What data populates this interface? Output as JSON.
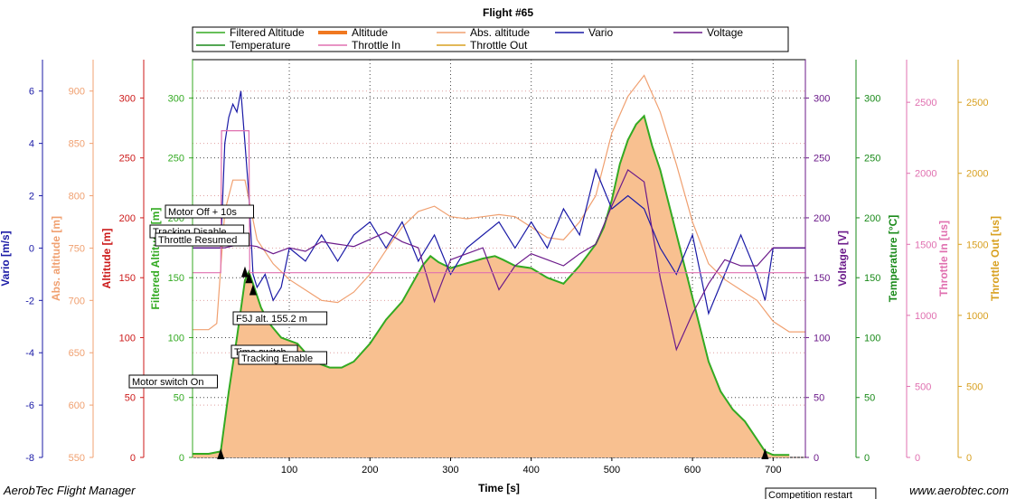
{
  "chart_data": {
    "type": "line",
    "title": "Flight #65",
    "xlabel": "Time [s]",
    "xlim": [
      -20,
      740
    ],
    "x_ticks": [
      100,
      200,
      300,
      400,
      500,
      600,
      700
    ],
    "grid": true,
    "legend_position": "top",
    "legend": [
      {
        "name": "Filtered Altitude",
        "color": "#33aa22"
      },
      {
        "name": "Altitude",
        "color": "#f07820"
      },
      {
        "name": "Abs. altitude",
        "color": "#f0a070"
      },
      {
        "name": "Vario",
        "color": "#1a1aa6"
      },
      {
        "name": "Voltage",
        "color": "#6b1a8a"
      },
      {
        "name": "Temperature",
        "color": "#1a8a1a"
      },
      {
        "name": "Throttle In",
        "color": "#e070b0"
      },
      {
        "name": "Throttle Out",
        "color": "#d8a020"
      }
    ],
    "axes": [
      {
        "label": "Vario [m/s]",
        "color": "#1a1aa6",
        "side": "left",
        "range": [
          -8,
          7.2
        ],
        "ticks": [
          -8,
          -6,
          -4,
          -2,
          0,
          2,
          4,
          6
        ]
      },
      {
        "label": "Abs. altitude [m]",
        "color": "#f0a070",
        "side": "left",
        "range": [
          550,
          930
        ],
        "ticks": [
          550,
          600,
          650,
          700,
          750,
          800,
          850,
          900
        ]
      },
      {
        "label": "Altitude [m]",
        "color": "#cc1a1a",
        "side": "left",
        "range": [
          0,
          332
        ],
        "ticks": [
          0,
          50,
          100,
          150,
          200,
          250,
          300
        ]
      },
      {
        "label": "Filtered Altitude [m]",
        "color": "#33aa22",
        "side": "left",
        "range": [
          0,
          332
        ],
        "ticks": [
          0,
          50,
          100,
          150,
          200,
          250,
          300
        ]
      },
      {
        "label": "Voltage [V]",
        "color": "#6b1a8a",
        "side": "right",
        "range": [
          0,
          332
        ],
        "ticks": [
          0,
          50,
          100,
          150,
          200,
          250,
          300
        ]
      },
      {
        "label": "Temperature [°C]",
        "color": "#1a8a1a",
        "side": "right",
        "range": [
          0,
          332
        ],
        "ticks": [
          0,
          50,
          100,
          150,
          200,
          250,
          300
        ]
      },
      {
        "label": "Throttle In [us]",
        "color": "#e070b0",
        "side": "right",
        "range": [
          0,
          2800
        ],
        "ticks": [
          0,
          500,
          1000,
          1500,
          2000,
          2500
        ]
      },
      {
        "label": "Throttle Out [us]",
        "color": "#d8a020",
        "side": "right",
        "range": [
          0,
          2800
        ],
        "ticks": [
          0,
          500,
          1000,
          1500,
          2000,
          2500
        ]
      }
    ],
    "series": [
      {
        "name": "Filtered Altitude",
        "axis": 3,
        "x": [
          -20,
          0,
          15,
          25,
          35,
          45,
          50,
          55,
          65,
          75,
          90,
          110,
          130,
          150,
          165,
          180,
          200,
          220,
          240,
          255,
          265,
          275,
          285,
          300,
          320,
          340,
          355,
          365,
          380,
          400,
          420,
          440,
          460,
          480,
          490,
          500,
          510,
          520,
          530,
          540,
          550,
          560,
          575,
          590,
          605,
          620,
          635,
          650,
          665,
          680,
          690,
          700,
          720
        ],
        "values": [
          3,
          3,
          5,
          55,
          100,
          148,
          155,
          145,
          125,
          112,
          100,
          95,
          80,
          75,
          75,
          80,
          95,
          115,
          130,
          148,
          160,
          168,
          163,
          158,
          162,
          166,
          168,
          165,
          160,
          158,
          150,
          145,
          160,
          178,
          192,
          215,
          245,
          265,
          278,
          285,
          260,
          240,
          200,
          160,
          120,
          80,
          55,
          40,
          30,
          15,
          5,
          2,
          2
        ]
      },
      {
        "name": "Abs. altitude",
        "axis": 1,
        "x": [
          -20,
          0,
          10,
          20,
          30,
          45,
          60,
          80,
          100,
          120,
          140,
          160,
          180,
          200,
          220,
          240,
          260,
          280,
          300,
          320,
          340,
          360,
          380,
          400,
          420,
          440,
          460,
          480,
          500,
          520,
          540,
          560,
          580,
          600,
          620,
          640,
          660,
          680,
          700,
          720,
          740
        ],
        "values": [
          672,
          672,
          678,
          785,
          815,
          815,
          758,
          735,
          720,
          710,
          700,
          698,
          708,
          725,
          748,
          770,
          785,
          790,
          780,
          778,
          780,
          782,
          780,
          770,
          760,
          758,
          775,
          800,
          860,
          895,
          915,
          880,
          830,
          775,
          735,
          720,
          710,
          700,
          680,
          670,
          670
        ]
      },
      {
        "name": "Vario",
        "axis": 0,
        "x": [
          -20,
          0,
          15,
          20,
          25,
          30,
          35,
          40,
          45,
          50,
          55,
          60,
          70,
          80,
          90,
          100,
          120,
          140,
          160,
          180,
          200,
          220,
          240,
          260,
          280,
          300,
          320,
          340,
          360,
          380,
          400,
          420,
          440,
          460,
          480,
          500,
          520,
          540,
          560,
          580,
          600,
          620,
          640,
          660,
          680,
          690,
          700,
          740
        ],
        "values": [
          0,
          0,
          0,
          4,
          5,
          5.5,
          5.2,
          6,
          4,
          2,
          -1,
          -1.5,
          -1,
          -2,
          -1.5,
          0,
          -0.5,
          0.5,
          -0.5,
          0.5,
          1,
          0,
          1,
          -0.5,
          0.5,
          -1,
          0,
          0.5,
          1,
          0,
          1,
          0,
          1.5,
          0.5,
          3,
          1.5,
          2,
          1.5,
          0,
          -1,
          0.5,
          -2.5,
          -1,
          0.5,
          -1,
          -2,
          0,
          0
        ]
      },
      {
        "name": "Voltage",
        "axis": 4,
        "x": [
          -20,
          0,
          20,
          40,
          60,
          80,
          100,
          120,
          140,
          160,
          180,
          200,
          220,
          240,
          260,
          280,
          300,
          320,
          340,
          360,
          380,
          400,
          420,
          440,
          460,
          480,
          500,
          520,
          540,
          560,
          580,
          600,
          620,
          640,
          660,
          680,
          700,
          740
        ],
        "values": [
          175,
          175,
          175,
          178,
          176,
          170,
          175,
          172,
          180,
          178,
          176,
          182,
          188,
          180,
          175,
          130,
          165,
          170,
          175,
          140,
          160,
          170,
          165,
          160,
          170,
          178,
          210,
          240,
          230,
          150,
          90,
          120,
          145,
          165,
          160,
          160,
          175,
          175
        ]
      },
      {
        "name": "Throttle In",
        "axis": 6,
        "x": [
          -20,
          0,
          10,
          15,
          16,
          50,
          51,
          740
        ],
        "values": [
          1300,
          1300,
          1300,
          1300,
          2300,
          2300,
          1300,
          1300
        ]
      }
    ],
    "annotations": [
      {
        "x": 45,
        "text": "Motor Off + 10s"
      },
      {
        "x": 40,
        "text": "Tracking Disable"
      },
      {
        "x": 40,
        "text": "Throttle Resumed"
      },
      {
        "x": 50,
        "text": "F5J alt. 155.2 m"
      },
      {
        "x": 50,
        "text": "Time switch"
      },
      {
        "x": 55,
        "text": "Tracking Enable"
      },
      {
        "x": 15,
        "text": "Motor switch On"
      },
      {
        "x": 690,
        "text": "Competition restart"
      }
    ]
  },
  "footer": {
    "left": "AerobTec Flight Manager",
    "right": "www.aerobtec.com"
  }
}
